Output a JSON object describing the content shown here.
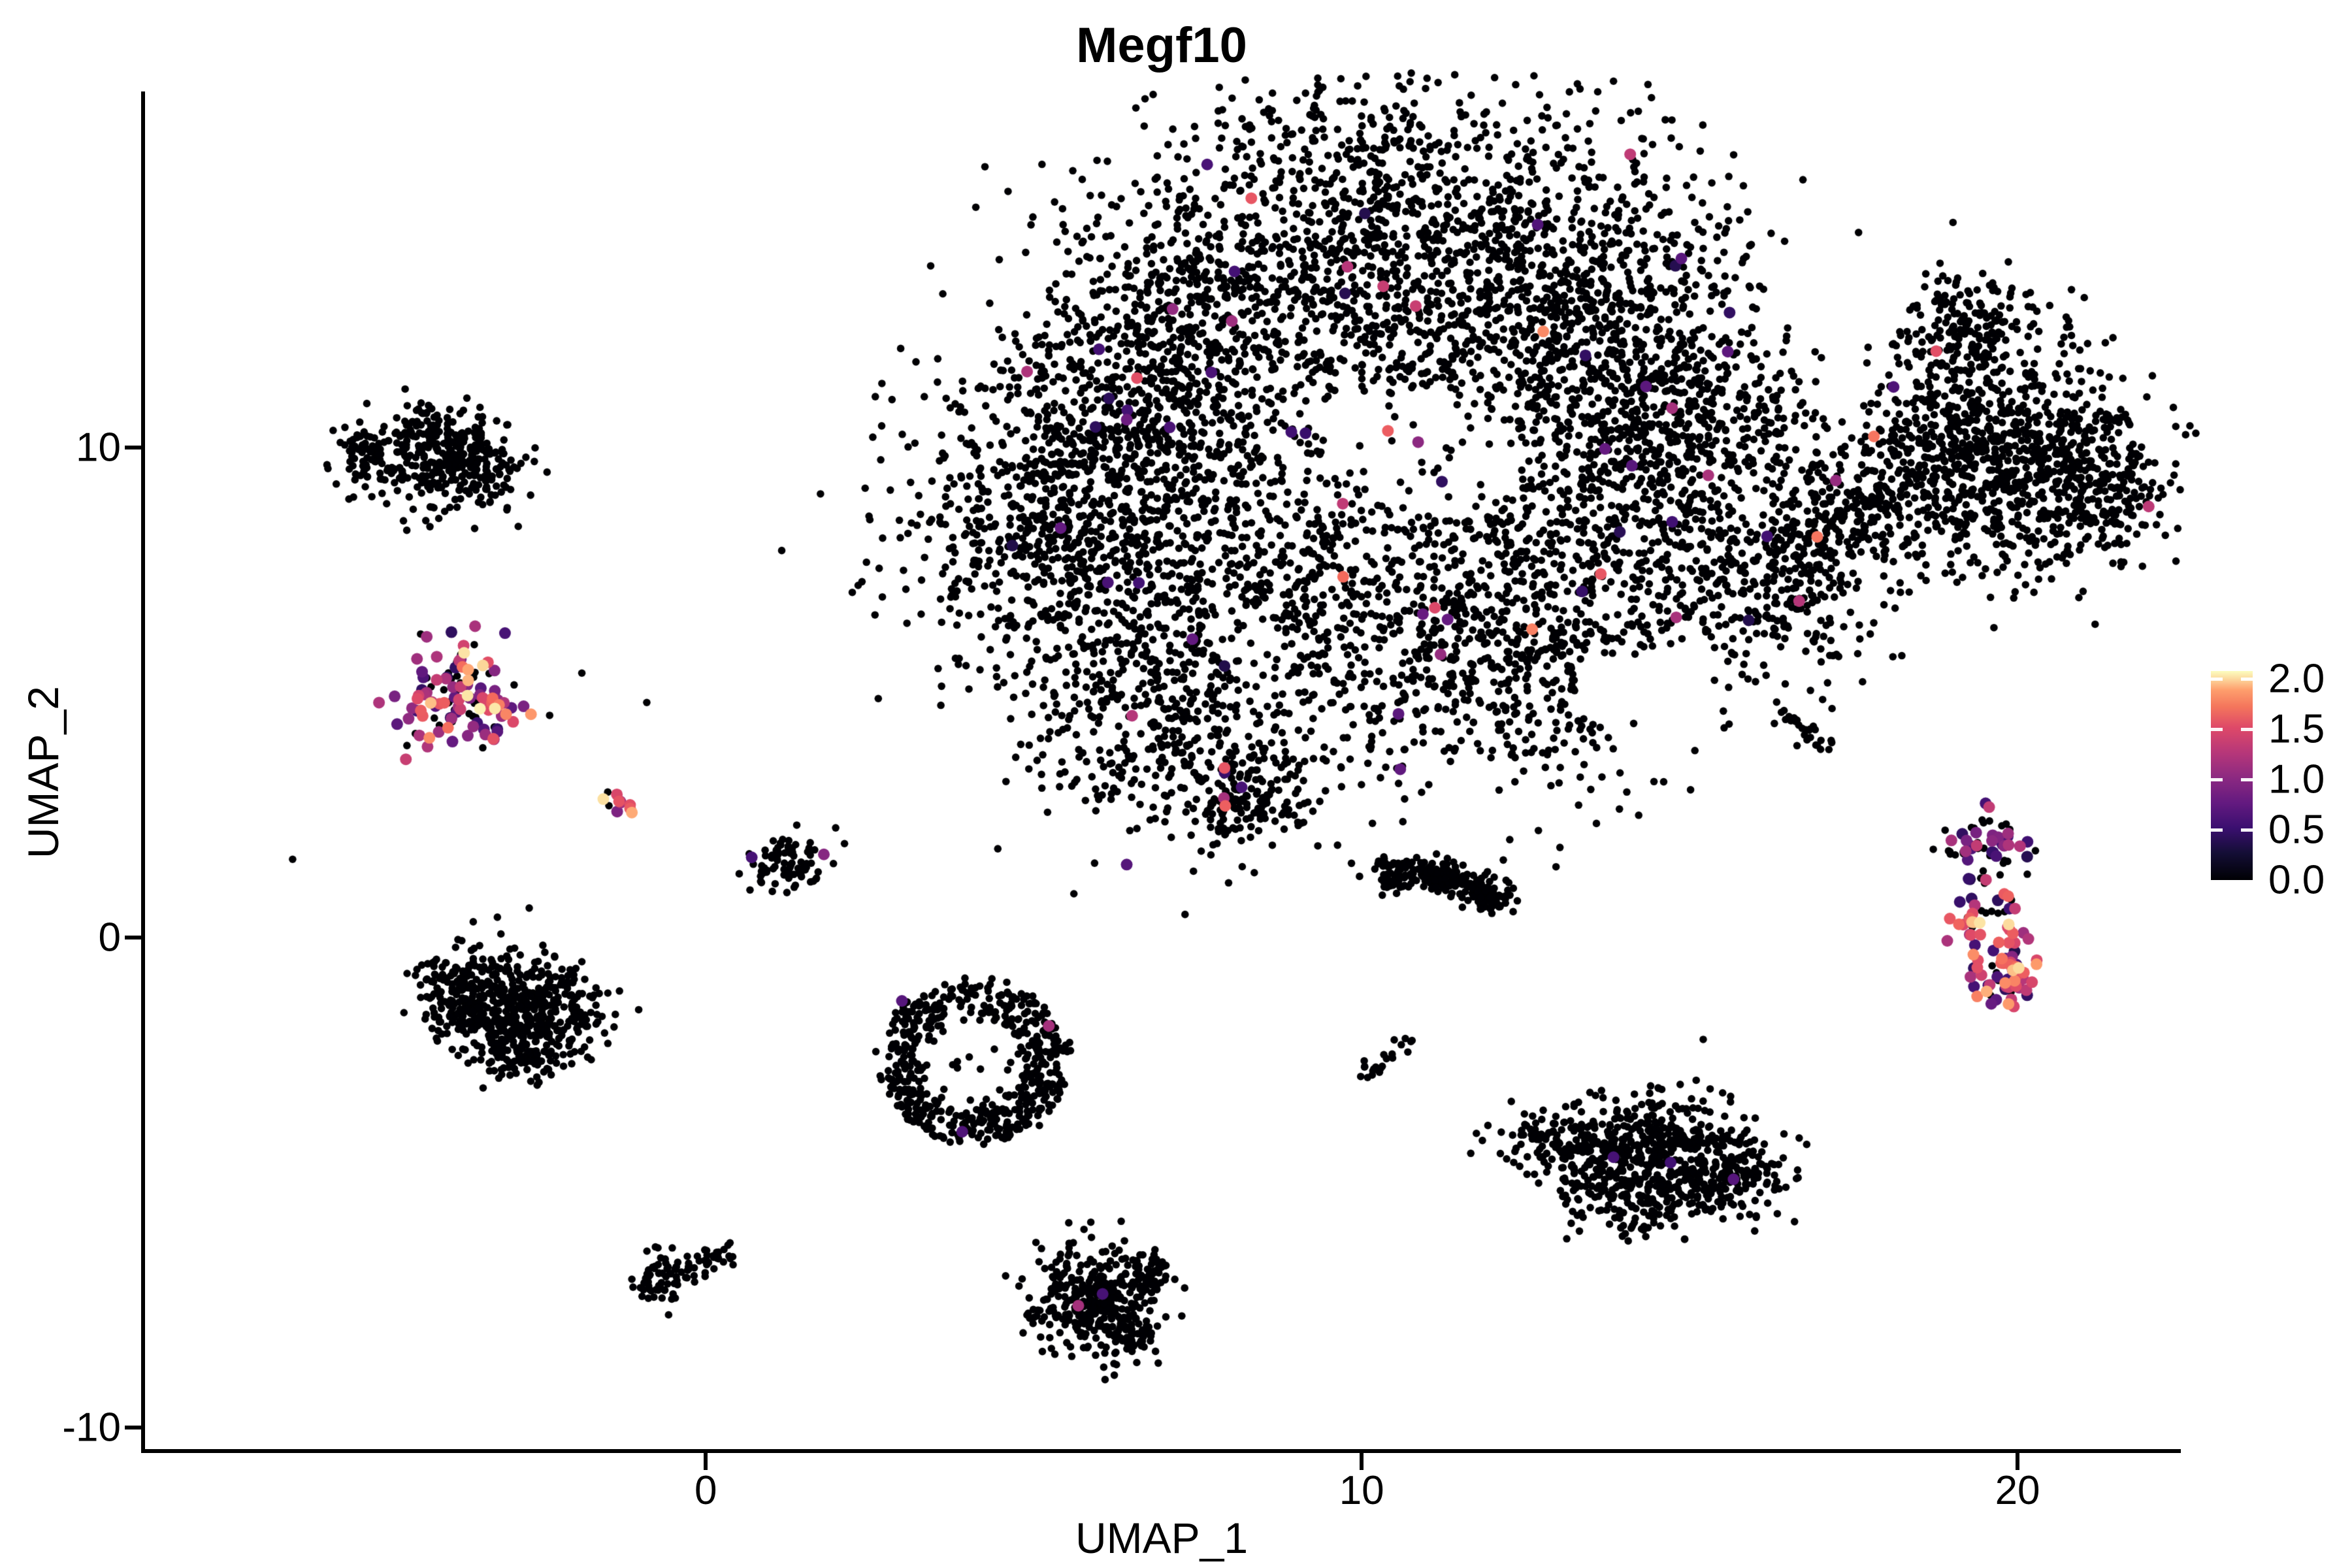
{
  "title": "Megf10",
  "axes": {
    "x_label": "UMAP_1",
    "y_label": "UMAP_2",
    "x_ticks": [
      {
        "v": 0,
        "label": "0"
      },
      {
        "v": 10,
        "label": "10"
      },
      {
        "v": 20,
        "label": "20"
      }
    ],
    "y_ticks": [
      {
        "v": -10,
        "label": "-10"
      },
      {
        "v": 0,
        "label": "0"
      },
      {
        "v": 10,
        "label": "10"
      }
    ]
  },
  "legend": {
    "ticks": [
      {
        "v": 2.0,
        "label": "2.0"
      },
      {
        "v": 1.5,
        "label": "1.5"
      },
      {
        "v": 1.0,
        "label": "1.0"
      },
      {
        "v": 0.5,
        "label": "0.5"
      },
      {
        "v": 0.0,
        "label": "0.0"
      }
    ]
  },
  "chart_data": {
    "type": "scatter",
    "title": "Megf10",
    "xlabel": "UMAP_1",
    "ylabel": "UMAP_2",
    "x_range": [
      -8.56,
      22.46
    ],
    "y_range": [
      -10.49,
      17.27
    ],
    "grid": false,
    "legend_position": "right",
    "colorbar": {
      "min": 0.0,
      "max": 2.08,
      "tick_values": [
        0.0,
        0.5,
        1.0,
        1.5,
        2.0
      ],
      "low_color": "#000004",
      "high_color": "#fcfdbf",
      "palette": "magma",
      "stops": [
        [
          0.0,
          0,
          0,
          4
        ],
        [
          0.13,
          20,
          14,
          54
        ],
        [
          0.25,
          59,
          15,
          112
        ],
        [
          0.38,
          100,
          26,
          128
        ],
        [
          0.5,
          140,
          41,
          129
        ],
        [
          0.63,
          183,
          55,
          121
        ],
        [
          0.75,
          222,
          73,
          104
        ],
        [
          0.85,
          244,
          105,
          92
        ],
        [
          0.92,
          254,
          159,
          109
        ],
        [
          0.97,
          252,
          224,
          161
        ],
        [
          1.0,
          252,
          253,
          191
        ]
      ]
    },
    "point_radius": {
      "nonexpressing": 5.8,
      "expressing": 9
    },
    "value_mixes": {
      "zero": [
        [
          1.0,
          0,
          0
        ]
      ],
      "left_color": [
        [
          0.32,
          0,
          0
        ],
        [
          0.2,
          0.35,
          0.8
        ],
        [
          0.2,
          0.9,
          1.3
        ],
        [
          0.16,
          1.35,
          1.8
        ],
        [
          0.12,
          1.85,
          2.08
        ]
      ],
      "left_tail": [
        [
          0.1,
          0,
          0
        ],
        [
          0.2,
          1.0,
          1.4
        ],
        [
          0.7,
          1.4,
          1.9
        ]
      ],
      "tiny_streak": [
        [
          0.2,
          0,
          0
        ],
        [
          0.2,
          0.9,
          1.2
        ],
        [
          0.4,
          1.4,
          1.8
        ],
        [
          0.2,
          1.9,
          2.05
        ]
      ],
      "sprinkle": [
        [
          0.7,
          0.35,
          0.85
        ],
        [
          0.2,
          1.0,
          1.5
        ],
        [
          0.08,
          1.5,
          1.85
        ],
        [
          0.02,
          1.85,
          2.0
        ]
      ],
      "rc_top": [
        [
          0.5,
          0,
          0
        ],
        [
          0.3,
          0.35,
          0.7
        ],
        [
          0.2,
          0.9,
          1.4
        ]
      ],
      "rc_chain": [
        [
          0.15,
          0,
          0
        ],
        [
          0.2,
          0.3,
          0.7
        ],
        [
          0.3,
          0.9,
          1.4
        ],
        [
          0.25,
          1.4,
          1.8
        ],
        [
          0.1,
          1.85,
          2.05
        ]
      ],
      "rc_offshoot": [
        [
          0.1,
          0,
          0
        ],
        [
          0.15,
          1.0,
          1.3
        ],
        [
          0.45,
          1.4,
          1.8
        ],
        [
          0.3,
          1.85,
          2.08
        ]
      ],
      "rc_hook": [
        [
          0.15,
          0,
          0
        ],
        [
          0.15,
          0.4,
          0.8
        ],
        [
          0.4,
          1.2,
          1.6
        ],
        [
          0.3,
          1.6,
          1.95
        ]
      ]
    },
    "clusters": [
      {
        "name": "main-body",
        "kind": "blobs",
        "mix": "zero",
        "blobs": [
          [
            5.68,
            8.47,
            1.3,
            1.5,
            900
          ],
          [
            7.17,
            11.8,
            1.4,
            1.7,
            900
          ],
          [
            10.16,
            14.47,
            1.6,
            1.9,
            1000
          ],
          [
            13.15,
            13.13,
            1.4,
            1.6,
            800
          ],
          [
            14.64,
            10.47,
            1.2,
            1.4,
            700
          ],
          [
            12.15,
            8.47,
            1.5,
            1.7,
            500
          ],
          [
            9.16,
            6.47,
            1.5,
            1.7,
            600
          ],
          [
            12.65,
            5.8,
            1.3,
            1.5,
            500
          ],
          [
            6.67,
            4.47,
            1.0,
            1.2,
            350
          ],
          [
            8.17,
            2.87,
            0.55,
            0.6,
            160
          ],
          [
            16.14,
            7.13,
            0.9,
            1.0,
            300
          ]
        ],
        "holes": [
          [
            11.16,
            9.8,
            1.29,
            1.2
          ],
          [
            14.34,
            5.0,
            1.0,
            0.93
          ],
          [
            9.96,
            10.6,
            0.65,
            0.65
          ],
          [
            8.2,
            6.2,
            0.55,
            0.55
          ]
        ]
      },
      {
        "name": "main-body-sprinkle",
        "kind": "blobs",
        "mix": "sprinkle",
        "blobs": [
          [
            5.68,
            8.47,
            1.2,
            1.4,
            7
          ],
          [
            7.17,
            11.8,
            1.3,
            1.6,
            8
          ],
          [
            10.16,
            14.47,
            1.5,
            1.8,
            9
          ],
          [
            13.15,
            13.13,
            1.3,
            1.5,
            8
          ],
          [
            14.64,
            10.47,
            1.1,
            1.3,
            7
          ],
          [
            12.15,
            8.47,
            1.4,
            1.6,
            6
          ],
          [
            9.16,
            6.47,
            1.4,
            1.6,
            6
          ],
          [
            12.65,
            5.8,
            1.2,
            1.4,
            5
          ],
          [
            6.67,
            4.47,
            0.9,
            1.1,
            4
          ],
          [
            16.14,
            7.13,
            0.8,
            0.9,
            3
          ]
        ]
      },
      {
        "name": "main-tail-hotspot",
        "kind": "dots",
        "dots": [
          [
            7.9,
            2.85,
            1.2
          ],
          [
            7.92,
            2.69,
            1.7
          ],
          [
            8.17,
            3.07,
            0.6
          ],
          [
            7.91,
            3.37,
            0.5
          ],
          [
            6.5,
            4.53,
            1.3
          ]
        ]
      },
      {
        "name": "bridge",
        "kind": "path",
        "mix": "zero",
        "n": 60,
        "width": 0.25,
        "pts": [
          [
            16.4,
            7.6
          ],
          [
            17.6,
            8.7
          ]
        ]
      },
      {
        "name": "right-wing",
        "kind": "blobs",
        "mix": "zero",
        "blobs": [
          [
            17.63,
            8.73,
            0.6,
            0.8,
            170
          ],
          [
            18.63,
            9.8,
            0.7,
            0.93,
            240
          ],
          [
            19.62,
            11.13,
            0.8,
            1.07,
            300
          ],
          [
            19.02,
            12.47,
            0.4,
            0.53,
            110
          ],
          [
            19.92,
            9.0,
            0.8,
            1.07,
            300
          ],
          [
            20.92,
            9.8,
            0.6,
            0.8,
            200
          ],
          [
            21.6,
            8.9,
            0.45,
            0.55,
            90
          ]
        ]
      },
      {
        "name": "right-wing-colored",
        "kind": "dots",
        "dots": [
          [
            18.76,
            11.97,
            1.6
          ],
          [
            18.11,
            11.24,
            0.65
          ],
          [
            17.81,
            10.23,
            1.8
          ],
          [
            17.23,
            9.33,
            1.1
          ],
          [
            16.67,
            6.87,
            1.3
          ],
          [
            22.0,
            8.8,
            1.35
          ]
        ]
      },
      {
        "name": "top-left-cluster",
        "kind": "blobs",
        "mix": "zero",
        "blobs": [
          [
            -4.28,
            10.33,
            0.25,
            0.3,
            60
          ],
          [
            -5.18,
            9.8,
            0.28,
            0.37,
            80
          ],
          [
            -3.98,
            9.6,
            0.45,
            0.55,
            200
          ],
          [
            -3.34,
            9.67,
            0.3,
            0.4,
            90
          ]
        ]
      },
      {
        "name": "left-expressing-cluster",
        "kind": "blobs",
        "mix": "left_color",
        "blobs": [
          [
            -3.78,
            4.93,
            0.42,
            0.5,
            120
          ]
        ]
      },
      {
        "name": "left-expressing-tail",
        "kind": "path",
        "mix": "left_tail",
        "n": 8,
        "width": 0.1,
        "pts": [
          [
            -3.42,
            4.77
          ],
          [
            -2.96,
            4.53
          ]
        ]
      },
      {
        "name": "tiny-expressing-streak",
        "kind": "path",
        "mix": "tiny_streak",
        "n": 11,
        "width": 0.08,
        "pts": [
          [
            -1.59,
            2.97
          ],
          [
            -1.18,
            2.57
          ]
        ]
      },
      {
        "name": "small-cluster-5",
        "kind": "blobs",
        "mix": "zero",
        "blobs": [
          [
            1.25,
            1.47,
            0.35,
            0.33,
            85
          ]
        ]
      },
      {
        "name": "small-cluster-5-colored",
        "kind": "dots",
        "dots": [
          [
            0.7,
            1.64,
            0.6
          ],
          [
            1.8,
            1.7,
            1.0
          ]
        ]
      },
      {
        "name": "left-crescent",
        "kind": "blobs",
        "mix": "zero",
        "blobs": [
          [
            -3.78,
            -1.13,
            0.35,
            0.47,
            150
          ],
          [
            -2.99,
            -1.27,
            0.45,
            0.6,
            200
          ],
          [
            -2.29,
            -1.47,
            0.4,
            0.53,
            150
          ],
          [
            -3.19,
            -1.93,
            0.35,
            0.47,
            110
          ],
          [
            -2.64,
            -2.4,
            0.25,
            0.33,
            50
          ]
        ]
      },
      {
        "name": "ring-cluster",
        "kind": "ring",
        "cx": 4.08,
        "cy": -2.53,
        "rx": 1.42,
        "ry": 1.67,
        "inner": 0.55,
        "n": 520,
        "inside_n": 14
      },
      {
        "name": "ring-cluster-colored",
        "kind": "dots",
        "dots": [
          [
            2.99,
            -1.29,
            0.7
          ],
          [
            5.23,
            -1.8,
            1.2
          ],
          [
            3.91,
            -3.96,
            0.65
          ]
        ]
      },
      {
        "name": "small-streak-mid",
        "kind": "path",
        "mix": "zero",
        "n": 22,
        "width": 0.1,
        "pts": [
          [
            10.01,
            -2.73
          ],
          [
            10.66,
            -2.13
          ]
        ]
      },
      {
        "name": "banana-cluster",
        "kind": "path",
        "mix": "zero",
        "n": 260,
        "width": 0.17,
        "pts": [
          [
            10.26,
            1.4
          ],
          [
            11.2,
            1.27
          ],
          [
            12.15,
            0.73
          ]
        ]
      },
      {
        "name": "right-lower-cluster",
        "kind": "blobs",
        "mix": "zero",
        "blobs": [
          [
            12.75,
            -4.13,
            0.4,
            0.33,
            70
          ],
          [
            13.45,
            -4.33,
            0.35,
            0.4,
            90
          ],
          [
            14.19,
            -4.2,
            0.45,
            0.53,
            150
          ],
          [
            14.94,
            -4.4,
            0.5,
            0.6,
            200
          ],
          [
            15.64,
            -4.8,
            0.45,
            0.53,
            160
          ],
          [
            13.65,
            -5.07,
            0.4,
            0.4,
            90
          ],
          [
            14.39,
            -5.47,
            0.35,
            0.4,
            70
          ]
        ]
      },
      {
        "name": "right-lower-colored",
        "kind": "dots",
        "dots": [
          [
            13.84,
            -4.48,
            0.6
          ],
          [
            14.71,
            -4.59,
            0.55
          ],
          [
            15.67,
            -4.93,
            0.7
          ]
        ]
      },
      {
        "name": "diag-streak-right",
        "kind": "path",
        "mix": "zero",
        "n": 26,
        "width": 0.1,
        "pts": [
          [
            16.5,
            4.51
          ],
          [
            17.1,
            3.8
          ]
        ]
      },
      {
        "name": "far-right-top-blob",
        "kind": "blobs",
        "mix": "rc_top",
        "blobs": [
          [
            19.52,
            1.87,
            0.35,
            0.33,
            60
          ]
        ]
      },
      {
        "name": "far-right-chain",
        "kind": "path",
        "mix": "rc_chain",
        "n": 30,
        "width": 0.09,
        "pts": [
          [
            19.72,
            1.13
          ],
          [
            19.87,
            0.4
          ],
          [
            19.94,
            -0.33
          ],
          [
            19.9,
            -1.0
          ]
        ]
      },
      {
        "name": "far-right-offshoot",
        "kind": "blobs",
        "mix": "rc_offshoot",
        "blobs": [
          [
            19.24,
            0.31,
            0.16,
            0.2,
            18
          ]
        ]
      },
      {
        "name": "far-right-hook",
        "kind": "blobs",
        "mix": "rc_hook",
        "blobs": [
          [
            19.7,
            -0.76,
            0.3,
            0.27,
            45
          ]
        ]
      },
      {
        "name": "far-right-scatter",
        "kind": "dots",
        "dots": [
          [
            19.12,
            0.73,
            0.5
          ],
          [
            19.3,
            0.8,
            0.45
          ],
          [
            19.05,
            1.69,
            0
          ],
          [
            19.45,
            0.55,
            0
          ],
          [
            19.6,
            -1.35,
            0.8
          ],
          [
            19.35,
            -0.15,
            0.6
          ]
        ]
      },
      {
        "name": "bottom-center-cluster",
        "kind": "blobs",
        "mix": "zero",
        "blobs": [
          [
            5.68,
            -7.27,
            0.4,
            0.53,
            170
          ],
          [
            6.17,
            -7.67,
            0.35,
            0.47,
            130
          ],
          [
            6.47,
            -7.0,
            0.3,
            0.4,
            80
          ],
          [
            6.62,
            -8.2,
            0.2,
            0.27,
            40
          ],
          [
            6.87,
            -6.87,
            0.15,
            0.2,
            20
          ]
        ]
      },
      {
        "name": "bottom-center-colored",
        "kind": "dots",
        "dots": [
          [
            5.68,
            -7.51,
            1.2
          ],
          [
            6.05,
            -7.27,
            0.6
          ]
        ]
      },
      {
        "name": "swoosh-cluster",
        "kind": "blobs",
        "mix": "zero",
        "blobs": [
          [
            -0.72,
            -7.03,
            0.22,
            0.27,
            55
          ]
        ]
      },
      {
        "name": "swoosh-tail",
        "kind": "path",
        "mix": "zero",
        "n": 45,
        "width": 0.12,
        "pts": [
          [
            -0.5,
            -6.87
          ],
          [
            -0.05,
            -6.6
          ],
          [
            0.4,
            -6.44
          ]
        ]
      },
      {
        "name": "stray-dots",
        "kind": "dots",
        "dots": [
          [
            -6.3,
            1.6,
            0
          ],
          [
            -1.89,
            5.4,
            0
          ],
          [
            -0.9,
            4.8,
            0
          ],
          [
            -1.89,
            -0.49,
            0
          ],
          [
            16.4,
            4.6,
            0
          ]
        ]
      }
    ]
  }
}
